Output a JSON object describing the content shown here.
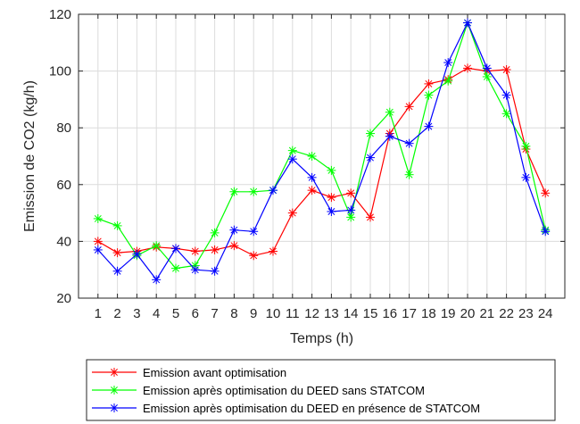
{
  "chart_data": {
    "type": "line",
    "xlabel": "Temps (h)",
    "ylabel": "Emission de CO2 (kg/h)",
    "x": [
      1,
      2,
      3,
      4,
      5,
      6,
      7,
      8,
      9,
      10,
      11,
      12,
      13,
      14,
      15,
      16,
      17,
      18,
      19,
      20,
      21,
      22,
      23,
      24
    ],
    "xlim": [
      0,
      25
    ],
    "ylim": [
      20,
      120
    ],
    "yticks": [
      20,
      40,
      60,
      80,
      100,
      120
    ],
    "grid": true,
    "legend_placement": "bottom-outside",
    "series": [
      {
        "name": "Emission avant optimisation",
        "color": "#ff0000",
        "marker": "asterisk",
        "values": [
          40,
          36,
          36.5,
          38,
          37.5,
          36.5,
          37,
          38.5,
          35,
          36.5,
          50,
          58,
          55.5,
          57,
          48.5,
          78,
          87.5,
          95.5,
          97,
          101,
          100,
          100.5,
          72.5,
          57
        ]
      },
      {
        "name": "Emission après optimisation du DEED sans STATCOM",
        "color": "#00ff00",
        "marker": "asterisk",
        "values": [
          48,
          45.5,
          35,
          38.5,
          30.5,
          31.5,
          43,
          57.5,
          57.5,
          58,
          72,
          70,
          65,
          48.5,
          78,
          85.5,
          63.5,
          91.5,
          96.5,
          117,
          98,
          85,
          73.5,
          44
        ]
      },
      {
        "name": "Emission après optimisation du DEED en présence de STATCOM",
        "color": "#0000ff",
        "marker": "asterisk",
        "values": [
          37,
          29.5,
          35.5,
          26.5,
          37.5,
          30,
          29.5,
          44,
          43.5,
          58,
          69,
          62.5,
          50.5,
          51,
          69.5,
          77,
          74.5,
          80.5,
          103,
          117,
          101,
          91.5,
          62.5,
          43.5
        ]
      }
    ]
  }
}
